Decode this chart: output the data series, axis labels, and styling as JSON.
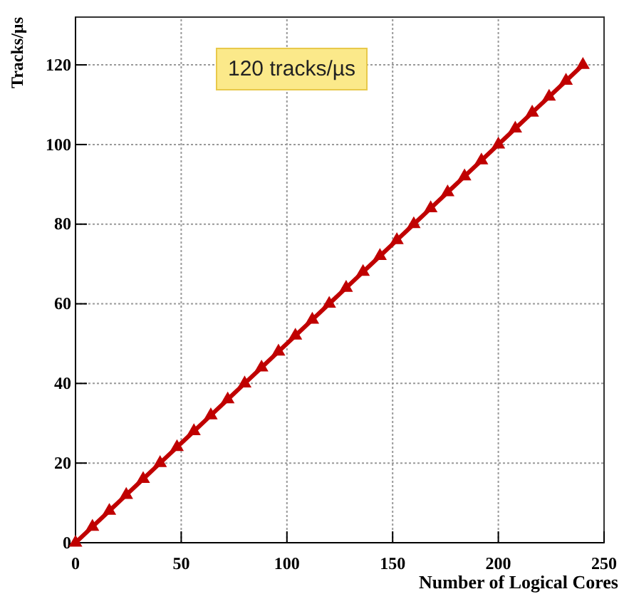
{
  "chart_data": {
    "type": "line",
    "xlabel": "Number of Logical Cores",
    "ylabel": "Tracks/µs",
    "x": [
      0,
      8,
      16,
      24,
      32,
      40,
      48,
      56,
      64,
      72,
      80,
      88,
      96,
      104,
      112,
      120,
      128,
      136,
      144,
      152,
      160,
      168,
      176,
      184,
      192,
      200,
      208,
      216,
      224,
      232,
      240
    ],
    "series": [
      {
        "color": "#c00000",
        "values": [
          0,
          4,
          8,
          12,
          16,
          20,
          24,
          28,
          32,
          36,
          40,
          44,
          48,
          52,
          56,
          60,
          64,
          68,
          72,
          76,
          80,
          84,
          88,
          92,
          96,
          100,
          104,
          108,
          112,
          116,
          120
        ]
      }
    ],
    "xlim": [
      0,
      250
    ],
    "xticks": [
      0,
      50,
      100,
      150,
      200,
      250
    ],
    "ylim": [
      0,
      132
    ],
    "yticks": [
      0,
      20,
      40,
      60,
      80,
      100,
      120
    ],
    "grid": true,
    "marker": "triangle",
    "line_style": "solid",
    "annotations": [
      "120 tracks/µs"
    ]
  }
}
